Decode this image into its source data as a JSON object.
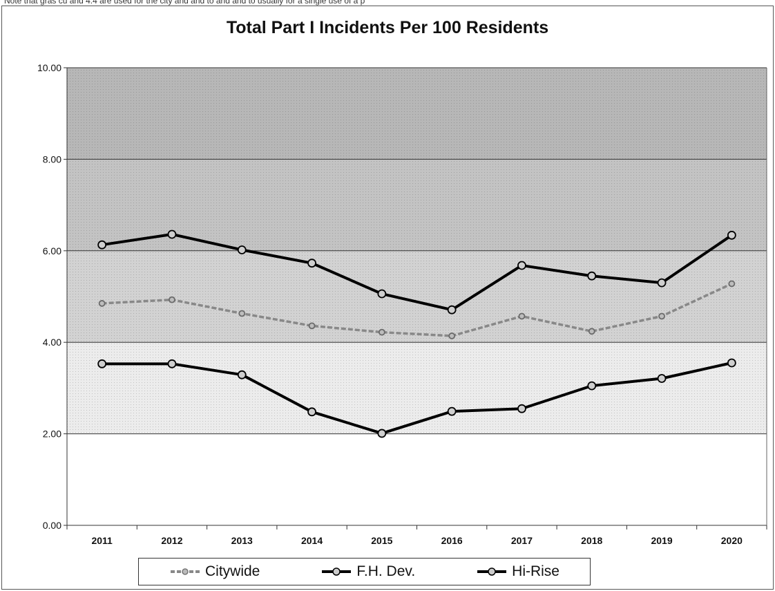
{
  "note": "Note that gras cu and 4.4 are used for the city and and to and and to usually for a single use of a p",
  "chart_data": {
    "type": "line",
    "title": "Total Part I Incidents Per 100 Residents",
    "x": [
      "2011",
      "2012",
      "2013",
      "2014",
      "2015",
      "2016",
      "2017",
      "2018",
      "2019",
      "2020"
    ],
    "ylim": [
      0,
      10
    ],
    "yticks": [
      "0.00",
      "2.00",
      "4.00",
      "6.00",
      "8.00",
      "10.00"
    ],
    "grid": true,
    "legend_position": "bottom",
    "series": [
      {
        "name": "Citywide",
        "values": [
          4.85,
          4.93,
          4.63,
          4.36,
          4.22,
          4.14,
          4.57,
          4.24,
          4.57,
          5.28
        ],
        "color": "#888888",
        "style": "dashed"
      },
      {
        "name": "F.H. Dev.",
        "values": [
          6.13,
          6.36,
          6.02,
          5.73,
          5.06,
          4.71,
          5.68,
          5.45,
          5.3,
          6.34
        ],
        "color": "#000000",
        "style": "solid"
      },
      {
        "name": "Hi-Rise",
        "values": [
          3.53,
          3.53,
          3.29,
          2.48,
          2.01,
          2.49,
          2.55,
          3.05,
          3.21,
          3.55
        ],
        "color": "#000000",
        "style": "solid"
      }
    ],
    "bands": [
      {
        "from": 8,
        "to": 10,
        "color": "#b7b7b7"
      },
      {
        "from": 6,
        "to": 8,
        "color": "#c3c3c3"
      },
      {
        "from": 4,
        "to": 6,
        "color": "#d2d2d2"
      },
      {
        "from": 2,
        "to": 4,
        "color": "#ececec"
      },
      {
        "from": 0,
        "to": 2,
        "color": "#ffffff"
      }
    ]
  }
}
